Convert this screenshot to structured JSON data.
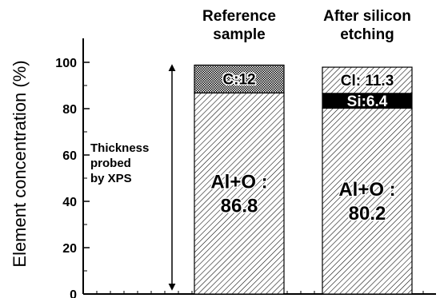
{
  "chart_data": {
    "type": "bar",
    "stacked": true,
    "categories": [
      "Reference sample",
      "After silicon etching"
    ],
    "category_labels": [
      [
        "Reference",
        "sample"
      ],
      [
        "After silicon",
        "etching"
      ]
    ],
    "ylabel": "Element concentration (%)",
    "ylim": [
      0,
      100
    ],
    "yticks": [
      0,
      20,
      40,
      60,
      80,
      100
    ],
    "series": [
      {
        "name": "Al+O",
        "values": [
          86.8,
          80.2
        ],
        "labels": [
          [
            "Al+O :",
            "86.8"
          ],
          [
            "Al+O :",
            "80.2"
          ]
        ]
      },
      {
        "name": "Si",
        "values": [
          0,
          6.4
        ],
        "labels": [
          [],
          [
            "Si:6.4"
          ]
        ]
      },
      {
        "name": "C",
        "values": [
          12,
          0
        ],
        "labels": [
          [
            "C:12"
          ],
          []
        ]
      },
      {
        "name": "Cl",
        "values": [
          0,
          11.3
        ],
        "labels": [
          [],
          [
            "Cl: 11.3"
          ]
        ]
      }
    ],
    "annotation": [
      "Thickness",
      "probed",
      "by XPS"
    ],
    "grid": false
  }
}
